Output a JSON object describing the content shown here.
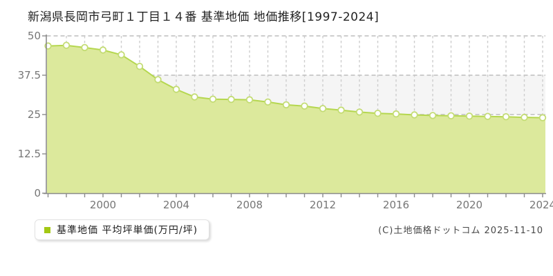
{
  "title": "新潟県長岡市弓町１丁目１４番 基準地価 地価推移[1997-2024]",
  "legend": {
    "marker_color": "#a3c814",
    "label": "基準地価 平均坪単価(万円/坪)"
  },
  "footer": {
    "copyright": "(C)土地価格ドットコム 2025-11-10"
  },
  "chart_data": {
    "type": "area",
    "title": "新潟県長岡市弓町１丁目１４番 基準地価 地価推移[1997-2024]",
    "xlabel": "",
    "ylabel": "",
    "x": [
      1997,
      1998,
      1999,
      2000,
      2001,
      2002,
      2003,
      2004,
      2005,
      2006,
      2007,
      2008,
      2009,
      2010,
      2011,
      2012,
      2013,
      2014,
      2015,
      2016,
      2017,
      2018,
      2019,
      2020,
      2021,
      2022,
      2023,
      2024
    ],
    "series": [
      {
        "name": "基準地価 平均坪単価(万円/坪)",
        "values": [
          46.8,
          47.0,
          46.3,
          45.5,
          44.0,
          40.3,
          36.1,
          33.0,
          30.6,
          29.9,
          29.8,
          29.7,
          29.0,
          28.1,
          27.7,
          26.9,
          26.4,
          25.8,
          25.4,
          25.2,
          24.9,
          24.7,
          24.6,
          24.5,
          24.4,
          24.3,
          24.1,
          24.0
        ]
      }
    ],
    "ylim": [
      0,
      50
    ],
    "xlim": [
      1997,
      2024
    ],
    "yticks": [
      0,
      12.5,
      25,
      37.5,
      50
    ],
    "ytick_labels": [
      "0",
      "12.5",
      "25",
      "37.5",
      "50"
    ],
    "xtick_every_year": true,
    "xtick_labels": [
      "2000",
      "2004",
      "2008",
      "2012",
      "2016",
      "2020",
      "2024"
    ],
    "xtick_label_years": [
      2000,
      2004,
      2008,
      2012,
      2016,
      2020,
      2024
    ],
    "grid": true,
    "legend_position": "bottom-left",
    "colors": {
      "area_fill": "#dce99c",
      "line": "#b5d74f",
      "marker_fill": "#ffffff",
      "marker_stroke": "#c3dc73",
      "grid_h": "#c6c6c6",
      "grid_v": "#cdcdcd",
      "band": "#f5f5f5",
      "axis": "#8a8a8a",
      "tick_label": "#767676"
    }
  }
}
